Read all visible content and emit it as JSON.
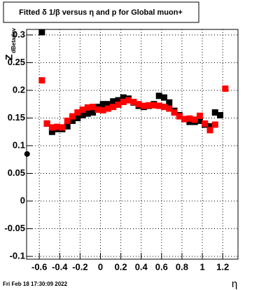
{
  "chart_data": {
    "type": "scatter",
    "title": "Fitted δ 1/β versus η and p for Global muon+",
    "x_label": "η",
    "y_label": "Z",
    "y_label_sub": "dBetadev",
    "timestamp": "Fri Feb 18 17:30:09 2022",
    "xlim": [
      -0.725,
      1.35
    ],
    "ylim": [
      -0.105,
      0.31
    ],
    "xticks": [
      -0.6,
      -0.4,
      -0.2,
      0,
      0.2,
      0.4,
      0.6,
      0.8,
      1,
      1.2
    ],
    "yticks": [
      -0.1,
      -0.05,
      0,
      0.05,
      0.1,
      0.15,
      0.2,
      0.25,
      0.3
    ],
    "grid": true,
    "x": [
      -0.575,
      -0.525,
      -0.475,
      -0.425,
      -0.375,
      -0.325,
      -0.275,
      -0.225,
      -0.175,
      -0.125,
      -0.075,
      -0.025,
      0.025,
      0.075,
      0.125,
      0.175,
      0.225,
      0.275,
      0.325,
      0.375,
      0.425,
      0.475,
      0.525,
      0.575,
      0.625,
      0.675,
      0.725,
      0.775,
      0.825,
      0.875,
      0.925,
      0.975,
      1.025,
      1.075,
      1.125,
      1.175,
      1.225
    ],
    "series": [
      {
        "color": "#000000",
        "marker": "square",
        "values": [
          0.305,
          0.14,
          0.125,
          0.13,
          0.13,
          0.135,
          0.145,
          0.15,
          0.155,
          0.158,
          0.16,
          0.17,
          0.175,
          0.175,
          0.18,
          0.182,
          0.187,
          0.185,
          0.178,
          0.172,
          0.17,
          0.172,
          0.175,
          0.19,
          0.187,
          0.178,
          0.163,
          0.155,
          0.148,
          0.143,
          0.143,
          0.145,
          0.138,
          0.135,
          0.16,
          0.155,
          null
        ]
      },
      {
        "color": "#ff0000",
        "marker": "square",
        "values": [
          0.218,
          0.14,
          0.133,
          0.134,
          0.133,
          0.145,
          0.153,
          0.16,
          0.165,
          0.169,
          0.17,
          0.165,
          0.164,
          0.167,
          0.17,
          0.174,
          0.179,
          0.182,
          0.179,
          0.175,
          0.172,
          0.173,
          0.173,
          0.172,
          0.17,
          0.167,
          0.16,
          0.153,
          0.148,
          0.149,
          0.147,
          0.154,
          0.14,
          0.128,
          0.138,
          null,
          0.203
        ]
      },
      {
        "color": "#000000",
        "marker": "circle",
        "x": [
          -0.72
        ],
        "values": [
          0.085
        ]
      }
    ]
  }
}
